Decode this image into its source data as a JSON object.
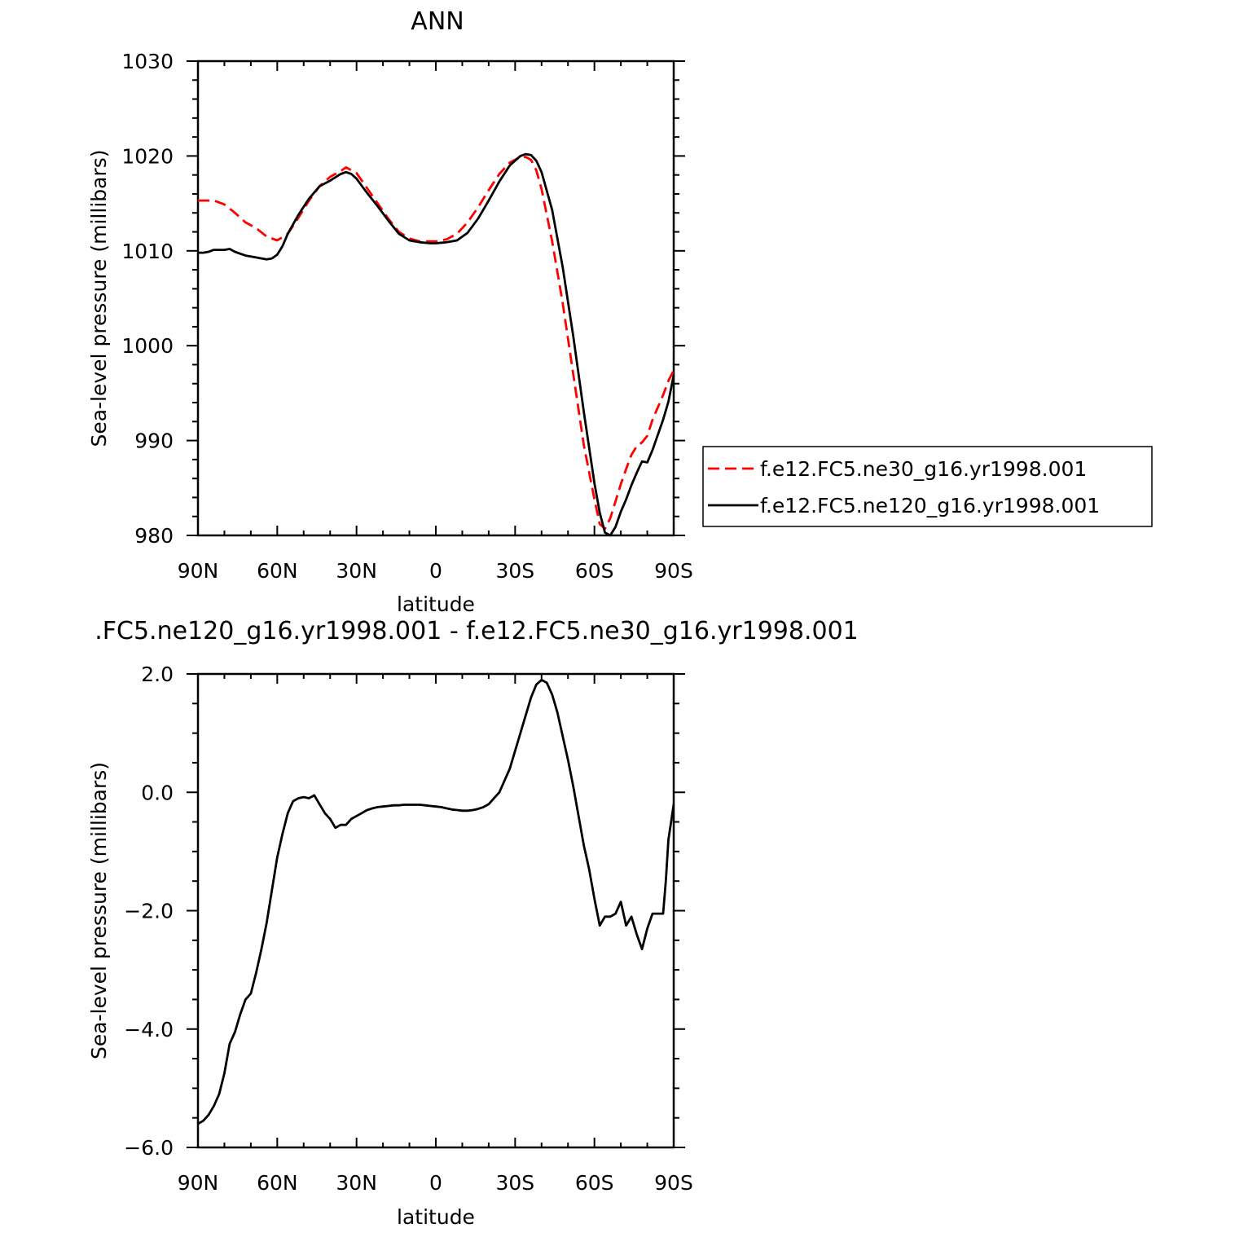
{
  "chart_data": [
    {
      "type": "line",
      "title": "ANN",
      "xlabel": "latitude",
      "ylabel": "Sea-level pressure (millibars)",
      "xlim": [
        90,
        -90
      ],
      "ylim": [
        980,
        1030
      ],
      "x_ticks": [
        90,
        60,
        30,
        0,
        -30,
        -60,
        -90
      ],
      "x_tick_labels": [
        "90N",
        "60N",
        "30N",
        "0",
        "30S",
        "60S",
        "90S"
      ],
      "y_ticks": [
        980,
        990,
        1000,
        1010,
        1020,
        1030
      ],
      "y_tick_labels": [
        "980",
        "990",
        "1000",
        "1010",
        "1020",
        "1030"
      ],
      "grid": false,
      "legend": "right",
      "series": [
        {
          "name": "f.e12.FC5.ne30_g16.yr1998.001",
          "color": "#ff0000",
          "dash": "dashed",
          "x": [
            90,
            84,
            80,
            76,
            72,
            68,
            64,
            60,
            56,
            52,
            48,
            44,
            40,
            36,
            34,
            30,
            26,
            22,
            18,
            14,
            10,
            6,
            2,
            0,
            -4,
            -8,
            -12,
            -16,
            -20,
            -24,
            -28,
            -32,
            -34,
            -36,
            -38,
            -40,
            -44,
            -48,
            -52,
            -56,
            -60,
            -62,
            -64,
            -66,
            -68,
            -70,
            -72,
            -74,
            -76,
            -78,
            -80,
            -82,
            -84,
            -86,
            -88,
            -90
          ],
          "y": [
            1015.3,
            1015.3,
            1014.9,
            1014.0,
            1013.0,
            1012.4,
            1011.5,
            1011.1,
            1011.8,
            1013.5,
            1015.3,
            1016.8,
            1017.8,
            1018.4,
            1018.8,
            1018.2,
            1016.6,
            1015.0,
            1013.4,
            1012.0,
            1011.3,
            1011.0,
            1011.0,
            1011.0,
            1011.2,
            1011.8,
            1013.0,
            1014.6,
            1016.4,
            1018.1,
            1019.3,
            1019.9,
            1019.9,
            1019.6,
            1018.5,
            1016.5,
            1011.0,
            1004.5,
            997.0,
            989.5,
            983.8,
            981.2,
            980.7,
            981.8,
            983.6,
            985.4,
            987.0,
            988.5,
            989.4,
            989.8,
            990.5,
            992.2,
            993.5,
            994.8,
            996.3,
            997.4
          ]
        },
        {
          "name": "f.e12.FC5.ne120_g16.yr1998.001",
          "color": "#000000",
          "dash": "solid",
          "x": [
            90,
            88,
            86,
            84,
            82,
            80,
            78,
            76,
            74,
            72,
            70,
            68,
            66,
            64,
            62,
            60,
            58,
            56,
            52,
            48,
            44,
            40,
            36,
            34,
            32,
            30,
            26,
            22,
            18,
            14,
            10,
            6,
            2,
            0,
            -4,
            -8,
            -12,
            -16,
            -20,
            -24,
            -28,
            -32,
            -34,
            -36,
            -38,
            -40,
            -44,
            -48,
            -52,
            -56,
            -60,
            -62,
            -64,
            -66,
            -68,
            -70,
            -72,
            -74,
            -76,
            -78,
            -80,
            -82,
            -84,
            -86,
            -88,
            -90
          ],
          "y": [
            1009.8,
            1009.8,
            1009.9,
            1010.1,
            1010.1,
            1010.1,
            1010.2,
            1009.9,
            1009.7,
            1009.5,
            1009.4,
            1009.3,
            1009.2,
            1009.1,
            1009.2,
            1009.6,
            1010.5,
            1011.8,
            1013.8,
            1015.5,
            1016.8,
            1017.4,
            1018.1,
            1018.3,
            1018.1,
            1017.6,
            1016.1,
            1014.7,
            1013.2,
            1011.8,
            1011.1,
            1010.9,
            1010.8,
            1010.8,
            1010.9,
            1011.1,
            1011.9,
            1013.4,
            1015.3,
            1017.3,
            1019.0,
            1020.0,
            1020.2,
            1020.1,
            1019.5,
            1018.3,
            1014.3,
            1008.3,
            1001.0,
            993.0,
            985.5,
            982.4,
            980.3,
            980.0,
            980.9,
            982.5,
            983.8,
            985.3,
            986.6,
            987.8,
            987.7,
            989.0,
            990.6,
            992.2,
            994.1,
            996.9
          ]
        }
      ]
    },
    {
      "type": "line",
      "title": ".FC5.ne120_g16.yr1998.001 - f.e12.FC5.ne30_g16.yr1998.001",
      "xlabel": "latitude",
      "ylabel": "Sea-level pressure (millibars)",
      "xlim": [
        90,
        -90
      ],
      "ylim": [
        -6.0,
        2.0
      ],
      "x_ticks": [
        90,
        60,
        30,
        0,
        -30,
        -60,
        -90
      ],
      "x_tick_labels": [
        "90N",
        "60N",
        "30N",
        "0",
        "30S",
        "60S",
        "90S"
      ],
      "y_ticks": [
        -6.0,
        -4.0,
        -2.0,
        0.0,
        2.0
      ],
      "y_tick_labels": [
        "−6.0",
        "−4.0",
        "−2.0",
        "0.0",
        "2.0"
      ],
      "grid": false,
      "series": [
        {
          "color": "#000000",
          "dash": "solid",
          "x": [
            90,
            88,
            86,
            84,
            82,
            80,
            78,
            76,
            74,
            72,
            70,
            68,
            66,
            64,
            62,
            60,
            58,
            56,
            54,
            52,
            50,
            48,
            46,
            44,
            42,
            40,
            38,
            36,
            34,
            32,
            30,
            28,
            26,
            24,
            22,
            20,
            18,
            16,
            14,
            12,
            10,
            8,
            6,
            4,
            2,
            0,
            -2,
            -4,
            -6,
            -8,
            -10,
            -12,
            -14,
            -16,
            -18,
            -20,
            -22,
            -24,
            -26,
            -28,
            -30,
            -32,
            -34,
            -36,
            -38,
            -40,
            -42,
            -44,
            -46,
            -48,
            -50,
            -52,
            -54,
            -56,
            -58,
            -60,
            -62,
            -64,
            -66,
            -68,
            -70,
            -72,
            -74,
            -76,
            -78,
            -80,
            -82,
            -84,
            -86,
            -87,
            -88,
            -89,
            -90
          ],
          "y": [
            -5.6,
            -5.55,
            -5.45,
            -5.3,
            -5.1,
            -4.75,
            -4.25,
            -4.05,
            -3.75,
            -3.5,
            -3.4,
            -3.05,
            -2.65,
            -2.2,
            -1.65,
            -1.1,
            -0.7,
            -0.35,
            -0.15,
            -0.1,
            -0.08,
            -0.1,
            -0.05,
            -0.2,
            -0.35,
            -0.45,
            -0.6,
            -0.55,
            -0.55,
            -0.45,
            -0.4,
            -0.35,
            -0.3,
            -0.27,
            -0.25,
            -0.24,
            -0.23,
            -0.22,
            -0.22,
            -0.21,
            -0.21,
            -0.21,
            -0.21,
            -0.22,
            -0.23,
            -0.24,
            -0.25,
            -0.27,
            -0.29,
            -0.3,
            -0.31,
            -0.31,
            -0.3,
            -0.28,
            -0.25,
            -0.2,
            -0.1,
            0.0,
            0.2,
            0.4,
            0.7,
            1.0,
            1.3,
            1.6,
            1.82,
            1.9,
            1.85,
            1.65,
            1.35,
            0.95,
            0.55,
            0.1,
            -0.4,
            -0.9,
            -1.3,
            -1.8,
            -2.25,
            -2.1,
            -2.1,
            -2.05,
            -1.85,
            -2.25,
            -2.1,
            -2.4,
            -2.65,
            -2.3,
            -2.05,
            -2.05,
            -2.05,
            -1.5,
            -0.8,
            -0.5,
            -0.2
          ]
        }
      ]
    }
  ]
}
